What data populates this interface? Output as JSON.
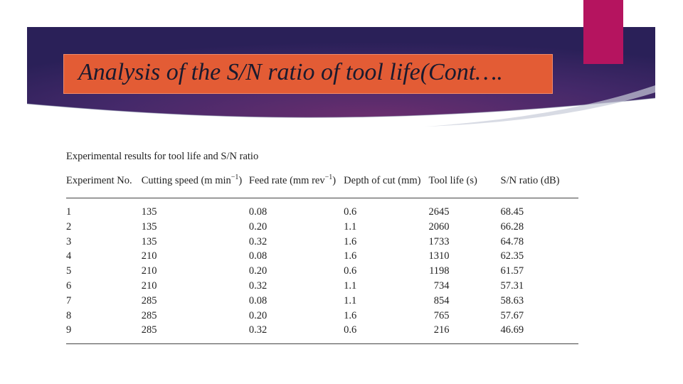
{
  "slide": {
    "title": "Analysis of the S/N ratio of tool life(Cont….",
    "colors": {
      "banner_dark": "#2a2058",
      "banner_purple": "#6a2e6e",
      "title_box": "#e35c35",
      "accent_tab": "#b5145f"
    }
  },
  "table": {
    "caption": "Experimental results for tool life and S/N ratio",
    "headers": {
      "experiment": "Experiment No.",
      "speed": "Cutting speed (m min",
      "speed_sup": "−1",
      "speed_close": ")",
      "feed": "Feed rate (mm rev",
      "feed_sup": "−1",
      "feed_close": ")",
      "depth": "Depth of cut (mm)",
      "life": "Tool life (s)",
      "sn": "S/N ratio (dB)"
    },
    "rows": [
      [
        "1",
        "135",
        "0.08",
        "0.6",
        "2645",
        "68.45"
      ],
      [
        "2",
        "135",
        "0.20",
        "1.1",
        "2060",
        "66.28"
      ],
      [
        "3",
        "135",
        "0.32",
        "1.6",
        "1733",
        "64.78"
      ],
      [
        "4",
        "210",
        "0.08",
        "1.6",
        "1310",
        "62.35"
      ],
      [
        "5",
        "210",
        "0.20",
        "0.6",
        "1198",
        "61.57"
      ],
      [
        "6",
        "210",
        "0.32",
        "1.1",
        "734",
        "57.31"
      ],
      [
        "7",
        "285",
        "0.08",
        "1.1",
        "854",
        "58.63"
      ],
      [
        "8",
        "285",
        "0.20",
        "1.6",
        "765",
        "57.67"
      ],
      [
        "9",
        "285",
        "0.32",
        "0.6",
        "216",
        "46.69"
      ]
    ]
  }
}
